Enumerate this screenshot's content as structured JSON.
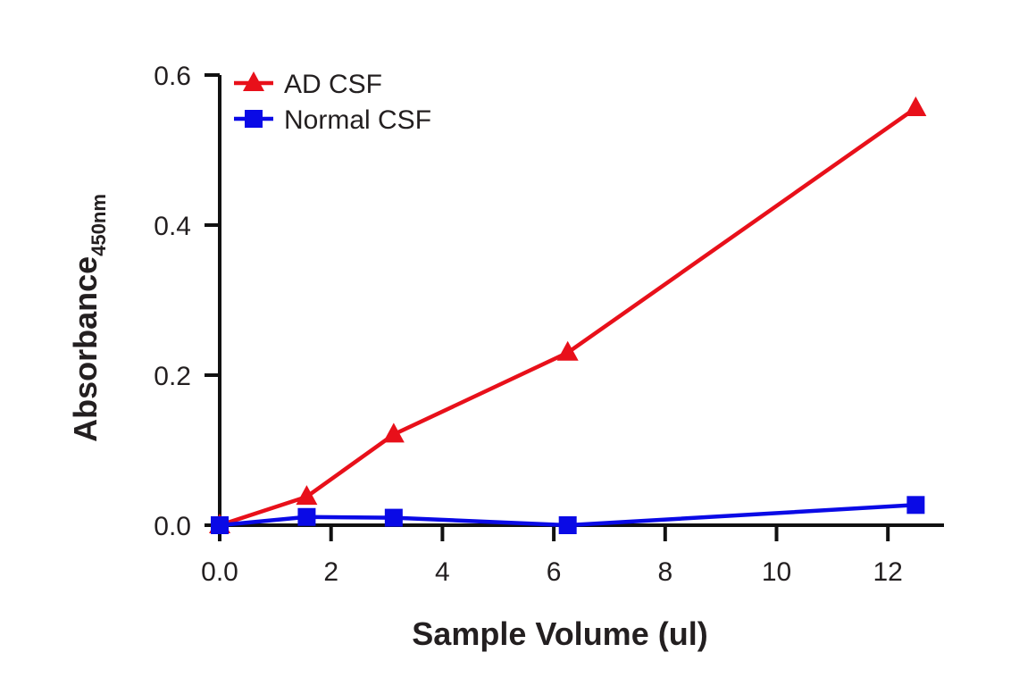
{
  "chart_data": {
    "type": "line",
    "title": "",
    "xlabel": "Sample Volume (ul)",
    "ylabel": "Absorbance",
    "ylabel_subscript": "450nm",
    "xlim": [
      0,
      13
    ],
    "ylim": [
      0,
      0.6
    ],
    "xticks": [
      "0.0",
      "2",
      "4",
      "6",
      "8",
      "10",
      "12"
    ],
    "yticks": [
      "0.0",
      "0.2",
      "0.4",
      "0.6"
    ],
    "grid": false,
    "legend_position": "top-left",
    "series": [
      {
        "name": "AD CSF",
        "color": "#e8101a",
        "marker": "triangle",
        "x": [
          0,
          1.5625,
          3.125,
          6.25,
          12.5
        ],
        "y": [
          0.0,
          0.038,
          0.121,
          0.23,
          0.556
        ]
      },
      {
        "name": "Normal CSF",
        "color": "#0a0ae6",
        "marker": "square",
        "x": [
          0,
          1.5625,
          3.125,
          6.25,
          12.5
        ],
        "y": [
          0.0,
          0.011,
          0.01,
          0.0,
          0.027
        ]
      }
    ]
  }
}
